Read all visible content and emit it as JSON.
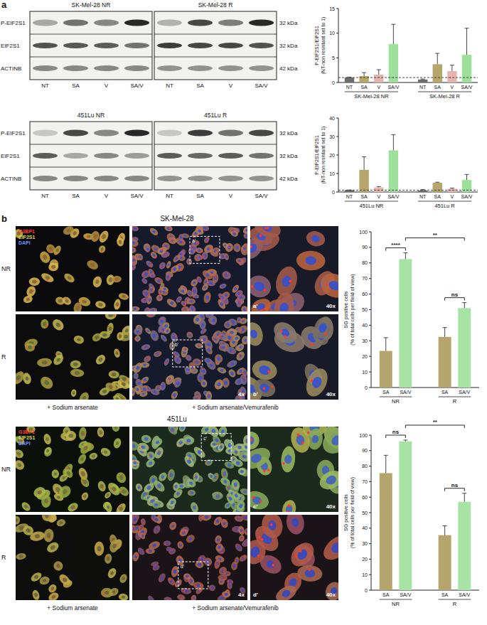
{
  "figure": {
    "panel_labels": [
      "a",
      "b"
    ],
    "blots": [
      {
        "headers": [
          "SK-Mel-28 NR",
          "SK-Mel-28 R"
        ],
        "rows": [
          "P-EIF2S1",
          "EIF2S1",
          "ACTINB"
        ],
        "sizes": [
          "32 kDa",
          "32 kDa",
          "42 kDa"
        ],
        "lanes": [
          "NT",
          "SA",
          "V",
          "SA/V"
        ]
      },
      {
        "headers": [
          "451Lu NR",
          "451Lu R"
        ],
        "rows": [
          "P-EIF2S1",
          "EIF2S1",
          "ACTINB"
        ],
        "sizes": [
          "32 kDa",
          "32 kDa",
          "42 kDa"
        ],
        "lanes": [
          "NT",
          "SA",
          "V",
          "SA/V"
        ]
      }
    ],
    "imaging": [
      {
        "title": "SK-Mel-28",
        "rows": [
          "NR",
          "R"
        ],
        "conditions": [
          "+ Sodium arsenate",
          "+ Sodium arsenate/Vemurafenib"
        ],
        "insets": [
          "a'",
          "b'"
        ],
        "magnifications": [
          "4x",
          "40x"
        ]
      },
      {
        "title": "451Lu",
        "rows": [
          "NR",
          "R"
        ],
        "conditions": [
          "+ Sodium arsenate",
          "+ Sodium arsenate/Vemurafenib"
        ],
        "insets": [
          "c'",
          "d'"
        ],
        "magnifications": [
          "4x",
          "40x"
        ]
      }
    ],
    "stains": [
      {
        "name": "G3BP1",
        "color": "#ff3b30"
      },
      {
        "name": "EIF2S1",
        "color": "#d9d94c"
      },
      {
        "name": "DAPI",
        "color": "#6f8cff"
      }
    ]
  },
  "chart_data": [
    {
      "type": "bar",
      "categories": [
        "NT",
        "SA",
        "V",
        "SA/V",
        "NT",
        "SA",
        "V",
        "SA/V"
      ],
      "group_labels": [
        "SK-Mel-28 NR",
        "SK-Mel-28 R"
      ],
      "values": [
        1,
        1.3,
        1.6,
        7.8,
        0.6,
        3.7,
        2.3,
        5.6
      ],
      "errors": [
        0.1,
        0.7,
        1.0,
        4.0,
        0.1,
        2.2,
        1.2,
        5.4
      ],
      "colors": [
        "#6d6d6d",
        "#b6a66c",
        "#e4b4b0",
        "#9edf9c",
        "#6d6d6d",
        "#b6a66c",
        "#e4b4b0",
        "#9edf9c"
      ],
      "ylim": [
        0,
        15
      ],
      "yticks": [
        0,
        5,
        10,
        15
      ],
      "ylabel": "P-EIF2S1/EIF2S1 (NT-non resistant set to 1)",
      "reference_line": 1
    },
    {
      "type": "bar",
      "categories": [
        "NT",
        "SA",
        "V",
        "SA/V",
        "NT",
        "SA",
        "V",
        "SA/V"
      ],
      "group_labels": [
        "451Lu NR",
        "451Lu R"
      ],
      "values": [
        1,
        12,
        2.5,
        22.5,
        0.8,
        5,
        1.7,
        6.5
      ],
      "errors": [
        0.1,
        7,
        0.4,
        8.5,
        0.5,
        0.3,
        0.4,
        3
      ],
      "colors": [
        "#6d6d6d",
        "#b6a66c",
        "#e4b4b0",
        "#9edf9c",
        "#6d6d6d",
        "#b6a66c",
        "#e4b4b0",
        "#9edf9c"
      ],
      "ylim": [
        0,
        40
      ],
      "yticks": [
        0,
        10,
        20,
        30,
        40
      ],
      "ylabel": "P-EIF2S1/EIF2S1 (NT-non resistant set to 1)",
      "reference_line": 1
    },
    {
      "type": "bar",
      "categories": [
        "SA",
        "SA/V",
        "SA",
        "SA/V"
      ],
      "group_labels": [
        "NR",
        "R"
      ],
      "values": [
        23.5,
        82.5,
        32.5,
        51
      ],
      "errors": [
        8.5,
        4,
        6,
        3.5
      ],
      "colors": [
        "#b5a46c",
        "#a6e3a4",
        "#b5a46c",
        "#a6e3a4"
      ],
      "ylim": [
        0,
        100
      ],
      "yticks": [
        0,
        10,
        20,
        30,
        40,
        50,
        60,
        70,
        80,
        90,
        100
      ],
      "ylabel": "SG positive cells (% of total cells per field of view)",
      "comparisons": [
        {
          "bars": [
            0,
            1
          ],
          "label": "****"
        },
        {
          "bars": [
            2,
            3
          ],
          "label": "ns"
        },
        {
          "bars": [
            1,
            3
          ],
          "label": "**"
        }
      ]
    },
    {
      "type": "bar",
      "categories": [
        "SA",
        "SA/V",
        "SA",
        "SA/V"
      ],
      "group_labels": [
        "NR",
        "R"
      ],
      "values": [
        75.5,
        96,
        35.5,
        57
      ],
      "errors": [
        11.5,
        0.8,
        6,
        5.5
      ],
      "colors": [
        "#b5a46c",
        "#a6e3a4",
        "#b5a46c",
        "#a6e3a4"
      ],
      "ylim": [
        0,
        100
      ],
      "yticks": [
        0,
        10,
        20,
        30,
        40,
        50,
        60,
        70,
        80,
        90,
        100
      ],
      "ylabel": "SG positive cells (% of total cells per field of view)",
      "comparisons": [
        {
          "bars": [
            0,
            1
          ],
          "label": "ns"
        },
        {
          "bars": [
            2,
            3
          ],
          "label": "ns"
        },
        {
          "bars": [
            1,
            3
          ],
          "label": "**"
        }
      ]
    }
  ]
}
